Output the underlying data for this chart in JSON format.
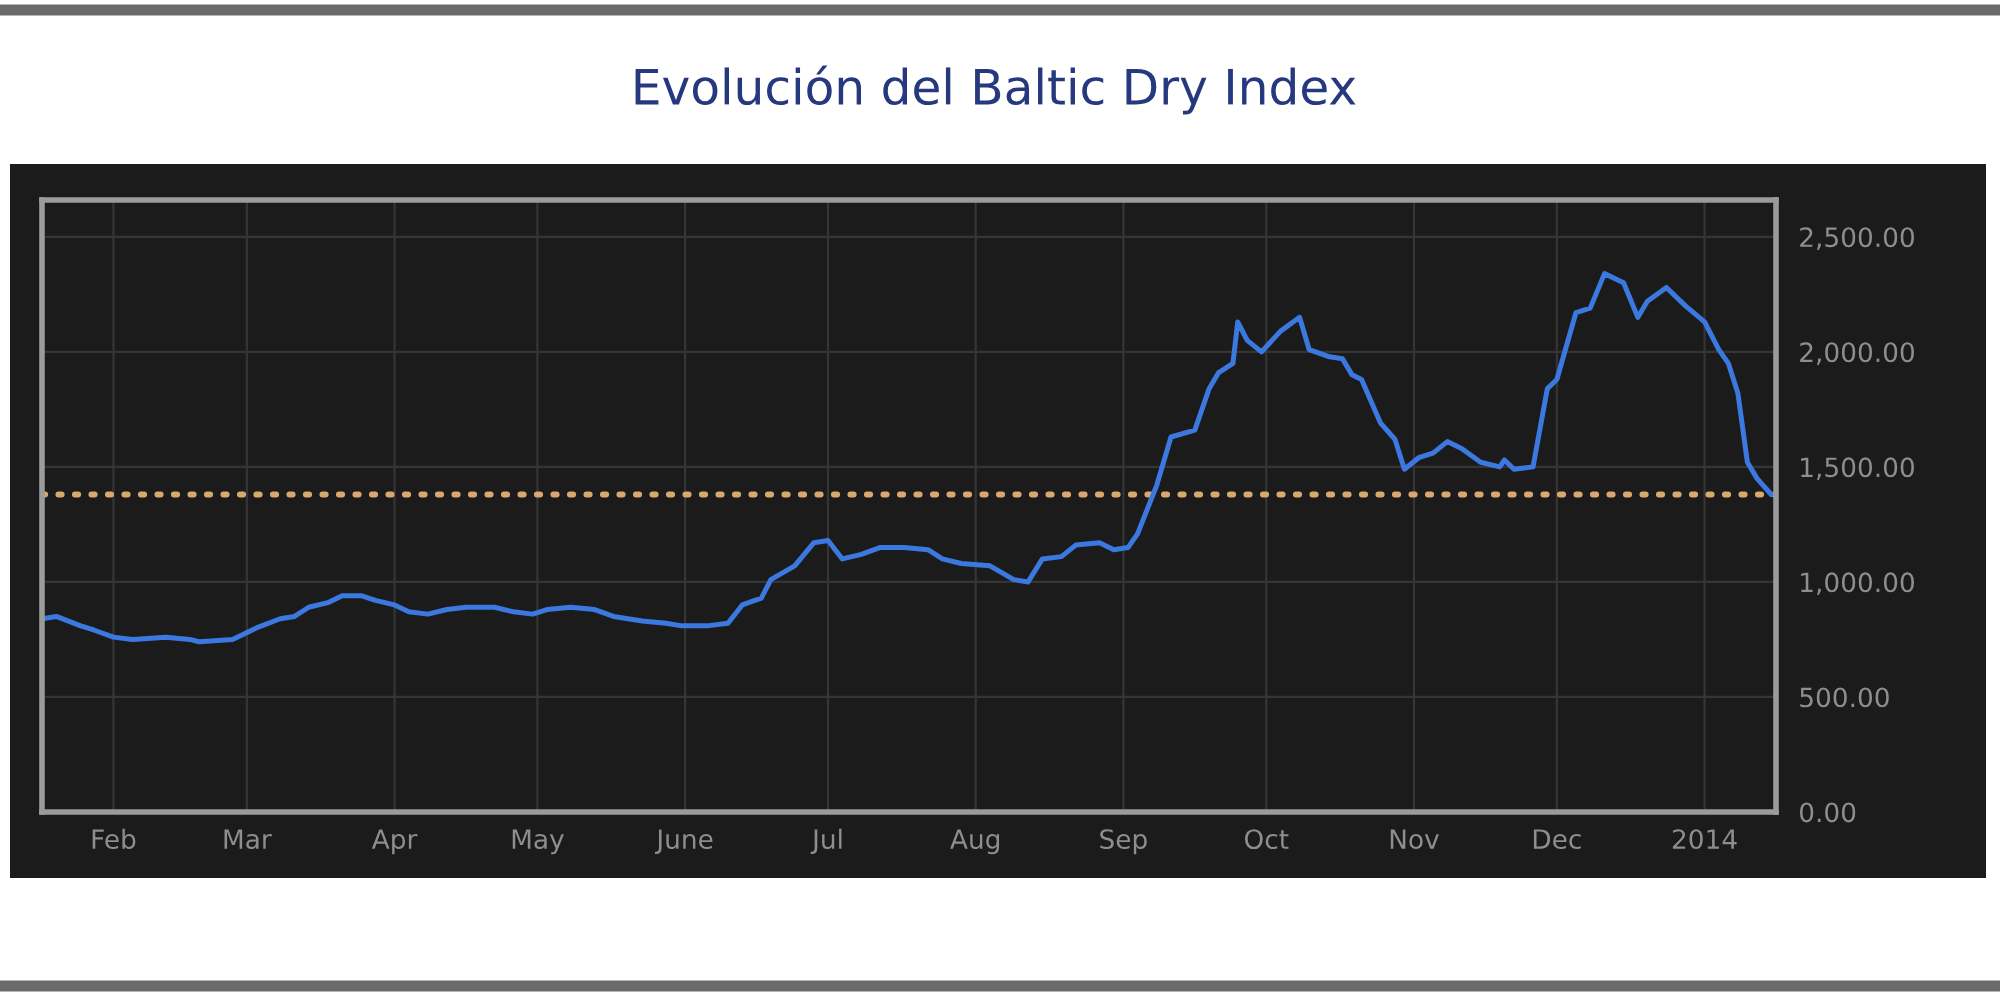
{
  "chart_data": {
    "type": "line",
    "title": "Evolución del Baltic Dry Index",
    "x": [
      "2013-01-17",
      "2013-01-20",
      "2013-01-25",
      "2013-01-28",
      "2013-02-01",
      "2013-02-05",
      "2013-02-12",
      "2013-02-17",
      "2013-02-19",
      "2013-02-26",
      "2013-03-03",
      "2013-03-08",
      "2013-03-11",
      "2013-03-14",
      "2013-03-18",
      "2013-03-21",
      "2013-03-25",
      "2013-03-28",
      "2013-04-01",
      "2013-04-04",
      "2013-04-08",
      "2013-04-12",
      "2013-04-16",
      "2013-04-22",
      "2013-04-26",
      "2013-04-30",
      "2013-05-03",
      "2013-05-08",
      "2013-05-13",
      "2013-05-17",
      "2013-05-23",
      "2013-05-28",
      "2013-05-31",
      "2013-06-06",
      "2013-06-10",
      "2013-06-13",
      "2013-06-17",
      "2013-06-19",
      "2013-06-24",
      "2013-06-28",
      "2013-07-01",
      "2013-07-04",
      "2013-07-08",
      "2013-07-12",
      "2013-07-17",
      "2013-07-22",
      "2013-07-25",
      "2013-07-29",
      "2013-08-04",
      "2013-08-09",
      "2013-08-12",
      "2013-08-15",
      "2013-08-19",
      "2013-08-22",
      "2013-08-27",
      "2013-08-30",
      "2013-09-02",
      "2013-09-04",
      "2013-09-08",
      "2013-09-11",
      "2013-09-16",
      "2013-09-19",
      "2013-09-21",
      "2013-09-24",
      "2013-09-25",
      "2013-09-27",
      "2013-09-30",
      "2013-10-04",
      "2013-10-08",
      "2013-10-10",
      "2013-10-14",
      "2013-10-17",
      "2013-10-19",
      "2013-10-21",
      "2013-10-25",
      "2013-10-28",
      "2013-10-30",
      "2013-11-02",
      "2013-11-05",
      "2013-11-08",
      "2013-11-11",
      "2013-11-15",
      "2013-11-19",
      "2013-11-20",
      "2013-11-22",
      "2013-11-26",
      "2013-11-29",
      "2013-12-01",
      "2013-12-05",
      "2013-12-08",
      "2013-12-11",
      "2013-12-15",
      "2013-12-18",
      "2013-12-20",
      "2013-12-24",
      "2013-12-28",
      "2014-01-01",
      "2014-01-04",
      "2014-01-06",
      "2014-01-08",
      "2014-01-10",
      "2014-01-12",
      "2014-01-15"
    ],
    "series": [
      {
        "color": "#3b78e0",
        "values": [
          840,
          850,
          810,
          790,
          760,
          750,
          760,
          750,
          740,
          750,
          800,
          840,
          850,
          890,
          910,
          940,
          940,
          920,
          900,
          870,
          860,
          880,
          890,
          890,
          870,
          860,
          880,
          890,
          880,
          850,
          830,
          820,
          810,
          810,
          820,
          900,
          930,
          1010,
          1070,
          1170,
          1180,
          1100,
          1120,
          1150,
          1150,
          1140,
          1100,
          1080,
          1070,
          1010,
          1000,
          1100,
          1110,
          1160,
          1170,
          1140,
          1150,
          1210,
          1420,
          1630,
          1660,
          1840,
          1910,
          1950,
          2130,
          2050,
          2000,
          2090,
          2150,
          2010,
          1980,
          1970,
          1900,
          1880,
          1690,
          1620,
          1490,
          1540,
          1560,
          1610,
          1580,
          1520,
          1500,
          1530,
          1490,
          1500,
          1840,
          1880,
          2170,
          2190,
          2340,
          2300,
          2150,
          2220,
          2280,
          2200,
          2130,
          2010,
          1950,
          1820,
          1520,
          1450,
          1380
        ]
      }
    ],
    "xlim": [
      "2013-01-17",
      "2014-01-16"
    ],
    "xticks": [
      {
        "value": "2013-02-01",
        "label": "Feb"
      },
      {
        "value": "2013-03-01",
        "label": "Mar"
      },
      {
        "value": "2013-04-01",
        "label": "Apr"
      },
      {
        "value": "2013-05-01",
        "label": "May"
      },
      {
        "value": "2013-06-01",
        "label": "June"
      },
      {
        "value": "2013-07-01",
        "label": "Jul"
      },
      {
        "value": "2013-08-01",
        "label": "Aug"
      },
      {
        "value": "2013-09-01",
        "label": "Sep"
      },
      {
        "value": "2013-10-01",
        "label": "Oct"
      },
      {
        "value": "2013-11-01",
        "label": "Nov"
      },
      {
        "value": "2013-12-01",
        "label": "Dec"
      },
      {
        "value": "2014-01-01",
        "label": "2014"
      }
    ],
    "ylim": [
      0,
      2660
    ],
    "yticks": [
      {
        "value": 0,
        "label": "0.00"
      },
      {
        "value": 500,
        "label": "500.00"
      },
      {
        "value": 1000,
        "label": "1,000.00"
      },
      {
        "value": 1500,
        "label": "1,500.00"
      },
      {
        "value": 2000,
        "label": "2,000.00"
      },
      {
        "value": 2500,
        "label": "2,500.00"
      }
    ],
    "grid": true,
    "ref_lines": [
      {
        "axis": "y",
        "value": 1380,
        "color": "#d9a86c",
        "line_style": "dotted"
      }
    ]
  }
}
